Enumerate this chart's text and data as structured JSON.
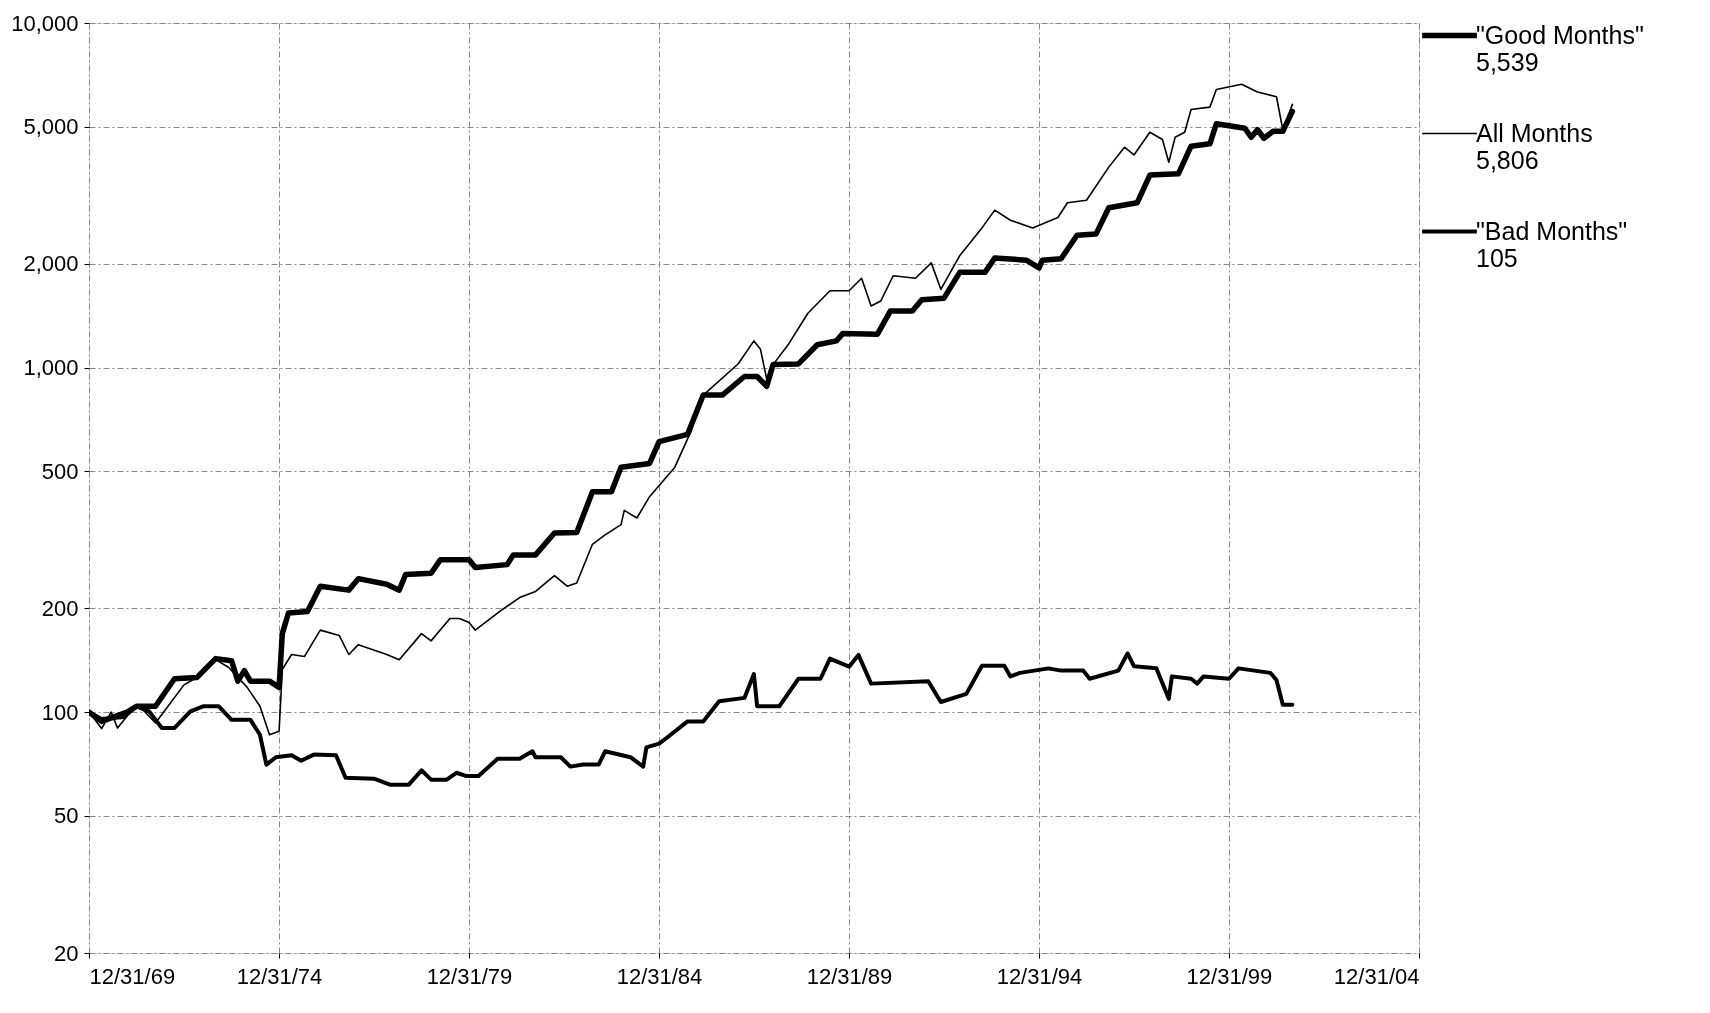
{
  "chart_data": {
    "type": "line",
    "log": true,
    "grid": true,
    "legend": "right",
    "xlim": [
      "1969-12-31",
      "2004-12-31"
    ],
    "xticks": [
      {
        "value": "1969-12-31",
        "label": "12/31/69"
      },
      {
        "value": "1974-12-31",
        "label": "12/31/74"
      },
      {
        "value": "1979-12-31",
        "label": "12/31/79"
      },
      {
        "value": "1984-12-31",
        "label": "12/31/84"
      },
      {
        "value": "1989-12-31",
        "label": "12/31/89"
      },
      {
        "value": "1994-12-31",
        "label": "12/31/94"
      },
      {
        "value": "1999-12-31",
        "label": "12/31/99"
      },
      {
        "value": "2004-12-31",
        "label": "12/31/04"
      }
    ],
    "ylim": [
      20,
      10000
    ],
    "yticks": [
      20,
      50,
      100,
      200,
      500,
      {
        "value": 1000,
        "label": "1,000"
      },
      {
        "value": 2000,
        "label": "2,000"
      },
      {
        "value": 5000,
        "label": "5,000"
      },
      {
        "value": 10000,
        "label": "10,000"
      }
    ],
    "annotations": [
      "5,539",
      "5,806",
      "105"
    ],
    "series": [
      {
        "name": "\"Good Months\"",
        "color": "#000000",
        "x": [
          "1970-01",
          "1970-05",
          "1971-01",
          "1971-04",
          "1971-10",
          "1972-04",
          "1972-11",
          "1973-05",
          "1973-10",
          "1973-12",
          "1974-02",
          "1974-04",
          "1974-10",
          "1975-01",
          "1975-02",
          "1975-04",
          "1975-10",
          "1976-02",
          "1976-11",
          "1977-02",
          "1977-11",
          "1978-03",
          "1978-05",
          "1979-01",
          "1979-04",
          "1980-01",
          "1980-03",
          "1981-01",
          "1981-03",
          "1981-10",
          "1982-04",
          "1982-11",
          "1983-04",
          "1983-10",
          "1984-01",
          "1984-10",
          "1985-01",
          "1985-10",
          "1986-03",
          "1986-09",
          "1987-04",
          "1987-08",
          "1987-11",
          "1988-01",
          "1988-09",
          "1989-03",
          "1989-09",
          "1989-11",
          "1990-10",
          "1991-02",
          "1991-09",
          "1991-12",
          "1992-07",
          "1992-12",
          "1993-08",
          "1993-11",
          "1994-09",
          "1995-01",
          "1995-02",
          "1995-08",
          "1996-01",
          "1996-07",
          "1996-11",
          "1997-08",
          "1997-12",
          "1998-09",
          "1999-01",
          "1999-07",
          "1999-09",
          "2000-06",
          "2000-08",
          "2000-10",
          "2000-12",
          "2001-03",
          "2001-06",
          "2001-09"
        ],
        "values": [
          100,
          94,
          100,
          104,
          104,
          125,
          126,
          143,
          141,
          123,
          132,
          123,
          123,
          118,
          169,
          194,
          196,
          232,
          226,
          244,
          235,
          226,
          251,
          253,
          277,
          277,
          263,
          268,
          286,
          286,
          331,
          332,
          436,
          436,
          514,
          527,
          610,
          640,
          832,
          832,
          942,
          942,
          882,
          1020,
          1025,
          1165,
          1195,
          1255,
          1250,
          1459,
          1459,
          1574,
          1590,
          1892,
          1892,
          2080,
          2050,
          1946,
          2050,
          2070,
          2421,
          2440,
          2911,
          3008,
          3620,
          3650,
          4390,
          4460,
          5100,
          4950,
          4660,
          4900,
          4630,
          4850,
          4850,
          5539
        ]
      },
      {
        "name": "All Months",
        "color": "#000000",
        "x": [
          "1970-01",
          "1970-05",
          "1970-08",
          "1970-10",
          "1971-02",
          "1971-05",
          "1971-10",
          "1972-07",
          "1972-11",
          "1973-05",
          "1973-09",
          "1974-03",
          "1974-07",
          "1974-10",
          "1975-01",
          "1975-02",
          "1975-05",
          "1975-09",
          "1976-02",
          "1976-08",
          "1976-11",
          "1977-02",
          "1977-11",
          "1978-03",
          "1978-10",
          "1979-01",
          "1979-07",
          "1979-10",
          "1980-01",
          "1980-03",
          "1980-11",
          "1981-05",
          "1981-10",
          "1982-04",
          "1982-08",
          "1982-11",
          "1983-04",
          "1983-08",
          "1984-01",
          "1984-02",
          "1984-06",
          "1984-10",
          "1985-06",
          "1985-11",
          "1986-03",
          "1987-02",
          "1987-07",
          "1987-09",
          "1987-11",
          "1988-01",
          "1988-06",
          "1988-12",
          "1989-07",
          "1990-01",
          "1990-05",
          "1990-08",
          "1990-11",
          "1991-03",
          "1991-10",
          "1992-03",
          "1992-06",
          "1992-12",
          "1993-07",
          "1993-11",
          "1994-04",
          "1994-11",
          "1995-07",
          "1995-10",
          "1996-04",
          "1996-11",
          "1997-04",
          "1997-07",
          "1997-12",
          "1998-04",
          "1998-06",
          "1998-08",
          "1998-11",
          "1999-01",
          "1999-07",
          "1999-09",
          "2000-05",
          "2000-10",
          "2001-04",
          "2001-06",
          "2001-09"
        ],
        "values": [
          100,
          89.6,
          100,
          90,
          100,
          104,
          93,
          120,
          126,
          142,
          135,
          118,
          104,
          86,
          88,
          133,
          147,
          145,
          173,
          167,
          147,
          157,
          147,
          142,
          169,
          161,
          187,
          187,
          182,
          173,
          197,
          215,
          224,
          249,
          232,
          237,
          307,
          327,
          350,
          385,
          366,
          422,
          514,
          651,
          832,
          1026,
          1195,
          1133,
          927,
          1020,
          1173,
          1438,
          1671,
          1671,
          1817,
          1509,
          1560,
          1847,
          1817,
          2013,
          1687,
          2115,
          2543,
          2864,
          2677,
          2543,
          2725,
          3008,
          3060,
          3817,
          4360,
          4140,
          4820,
          4590,
          3945,
          4660,
          4820,
          5610,
          5700,
          6410,
          6640,
          6310,
          6110,
          4900,
          5806
        ]
      },
      {
        "name": "\"Bad Months\"",
        "color": "#000000",
        "x": [
          "1970-01",
          "1970-05",
          "1970-12",
          "1971-04",
          "1971-08",
          "1971-12",
          "1972-04",
          "1972-09",
          "1973-01",
          "1973-06",
          "1973-10",
          "1974-04",
          "1974-07",
          "1974-09",
          "1974-12",
          "1975-05",
          "1975-08",
          "1975-12",
          "1976-07",
          "1976-10",
          "1977-07",
          "1977-12",
          "1978-06",
          "1978-10",
          "1979-01",
          "1979-06",
          "1979-09",
          "1979-12",
          "1980-04",
          "1980-10",
          "1981-05",
          "1981-09",
          "1981-10",
          "1982-06",
          "1982-09",
          "1983-01",
          "1983-06",
          "1983-08",
          "1984-04",
          "1984-08",
          "1984-09",
          "1985-01",
          "1985-04",
          "1985-10",
          "1986-03",
          "1986-08",
          "1987-04",
          "1987-07",
          "1987-08",
          "1988-03",
          "1988-09",
          "1989-04",
          "1989-07",
          "1990-01",
          "1990-04",
          "1990-08",
          "1992-02",
          "1992-06",
          "1993-02",
          "1993-07",
          "1994-02",
          "1994-04",
          "1994-07",
          "1995-04",
          "1995-08",
          "1996-03",
          "1996-05",
          "1997-02",
          "1997-05",
          "1997-07",
          "1998-02",
          "1998-06",
          "1998-07",
          "1999-01",
          "1999-03",
          "1999-05",
          "2000-01",
          "2000-04",
          "2001-02",
          "2001-04",
          "2001-06",
          "2001-09"
        ],
        "values": [
          100,
          95.5,
          96.8,
          104,
          100.5,
          90,
          90,
          100.5,
          104,
          104,
          95,
          95,
          86,
          70.4,
          74,
          75,
          72.3,
          75.3,
          75,
          64.5,
          64.1,
          61.6,
          61.6,
          67.8,
          63.7,
          63.7,
          66.7,
          65.3,
          65.3,
          73.2,
          73.2,
          77,
          74,
          74,
          69.5,
          70.5,
          70.5,
          77,
          74,
          69.5,
          79,
          81,
          85,
          94,
          94,
          107.5,
          110,
          129,
          104,
          104,
          125,
          125,
          143,
          135.5,
          146.6,
          121,
          123,
          107,
          113,
          136.4,
          136.4,
          127,
          130,
          134,
          132,
          132,
          125,
          132,
          148,
          136,
          134,
          109.3,
          127,
          125,
          121,
          127,
          125,
          134,
          130,
          124,
          105,
          105
        ]
      }
    ]
  }
}
